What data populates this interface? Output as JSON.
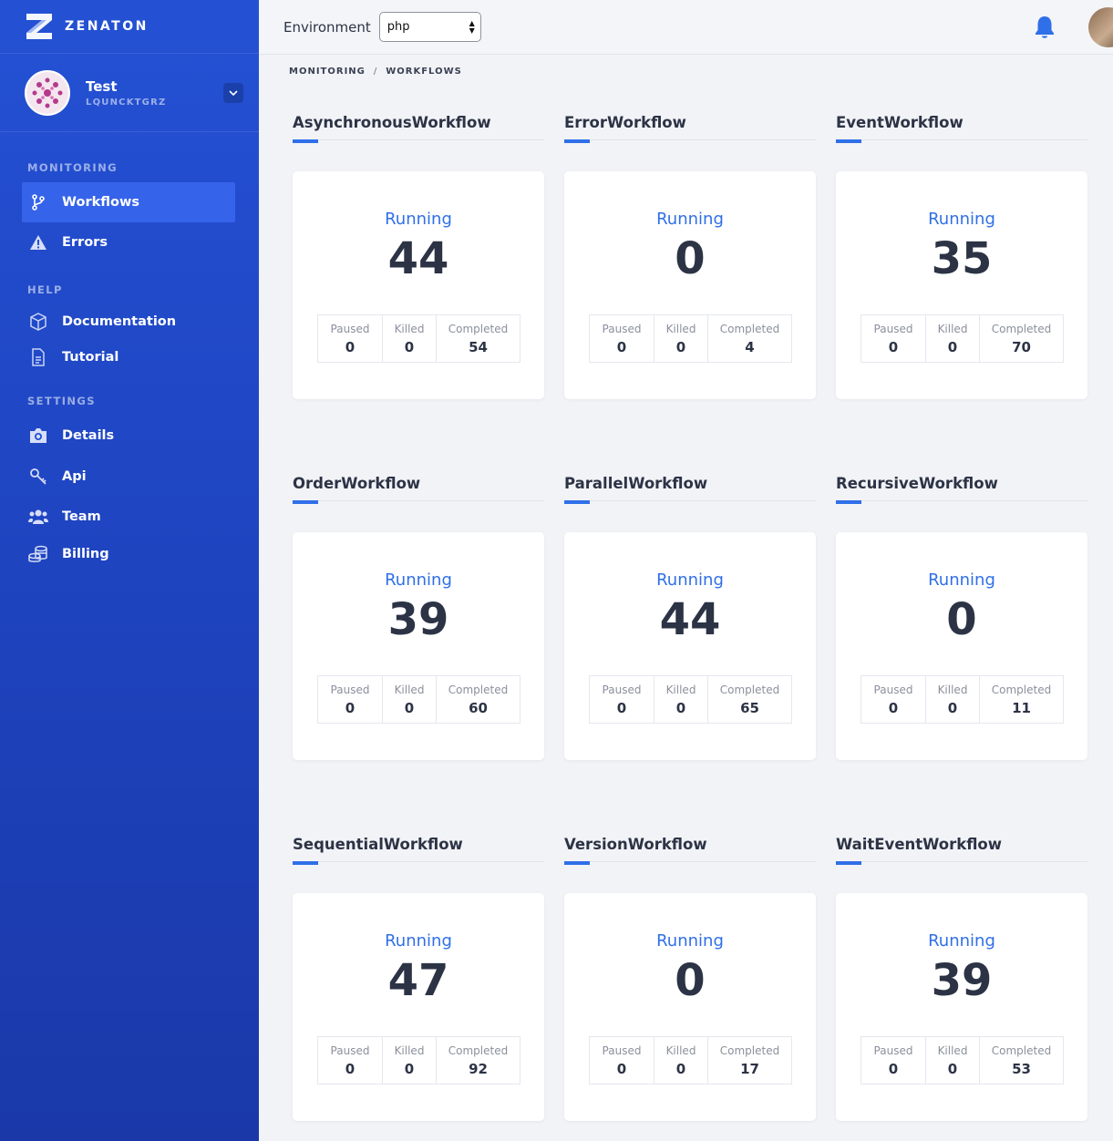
{
  "brand": {
    "name": "ZENATON"
  },
  "account": {
    "name": "Test",
    "id": "LQUNCKTGRZ"
  },
  "sidebar": {
    "sections": [
      {
        "label": "MONITORING"
      },
      {
        "label": "HELP"
      },
      {
        "label": "SETTINGS"
      }
    ],
    "items": [
      {
        "label": "Workflows",
        "icon": "git-branch-icon",
        "active": true
      },
      {
        "label": "Errors",
        "icon": "warning-icon"
      },
      {
        "label": "Documentation",
        "icon": "cube-icon"
      },
      {
        "label": "Tutorial",
        "icon": "document-icon"
      },
      {
        "label": "Details",
        "icon": "camera-icon"
      },
      {
        "label": "Api",
        "icon": "key-icon"
      },
      {
        "label": "Team",
        "icon": "users-icon"
      },
      {
        "label": "Billing",
        "icon": "coins-icon"
      }
    ]
  },
  "topbar": {
    "environment_label": "Environment",
    "environment_value": "php"
  },
  "breadcrumb": {
    "items": [
      "MONITORING",
      "WORKFLOWS"
    ],
    "separator": "/"
  },
  "stat_labels": {
    "running": "Running",
    "paused": "Paused",
    "killed": "Killed",
    "completed": "Completed"
  },
  "workflows": [
    {
      "name": "AsynchronousWorkflow",
      "running": "44",
      "paused": "0",
      "killed": "0",
      "completed": "54"
    },
    {
      "name": "ErrorWorkflow",
      "running": "0",
      "paused": "0",
      "killed": "0",
      "completed": "4"
    },
    {
      "name": "EventWorkflow",
      "running": "35",
      "paused": "0",
      "killed": "0",
      "completed": "70"
    },
    {
      "name": "OrderWorkflow",
      "running": "39",
      "paused": "0",
      "killed": "0",
      "completed": "60"
    },
    {
      "name": "ParallelWorkflow",
      "running": "44",
      "paused": "0",
      "killed": "0",
      "completed": "65"
    },
    {
      "name": "RecursiveWorkflow",
      "running": "0",
      "paused": "0",
      "killed": "0",
      "completed": "11"
    },
    {
      "name": "SequentialWorkflow",
      "running": "47",
      "paused": "0",
      "killed": "0",
      "completed": "92"
    },
    {
      "name": "VersionWorkflow",
      "running": "0",
      "paused": "0",
      "killed": "0",
      "completed": "17"
    },
    {
      "name": "WaitEventWorkflow",
      "running": "39",
      "paused": "0",
      "killed": "0",
      "completed": "53"
    }
  ],
  "colors": {
    "sidebar": "#2451d4",
    "active_item": "#3563e9",
    "accent": "#2f6fe8",
    "text": "#2c3345"
  }
}
